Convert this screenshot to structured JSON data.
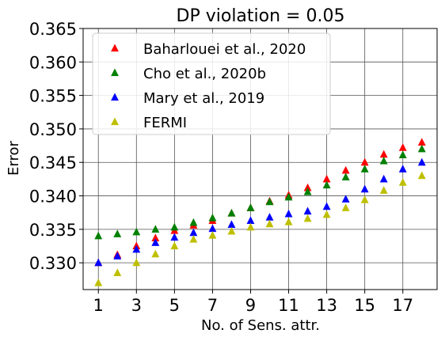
{
  "chart_data": {
    "type": "scatter",
    "title": "DP violation = 0.05",
    "xlabel": "No. of Sens. attr.",
    "ylabel": "Error",
    "xlim": [
      0.2,
      18.8
    ],
    "ylim": [
      0.326,
      0.365
    ],
    "xticks": [
      "1",
      "3",
      "5",
      "7",
      "9",
      "11",
      "13",
      "15",
      "17"
    ],
    "yticks": [
      "0.330",
      "0.335",
      "0.340",
      "0.345",
      "0.350",
      "0.355",
      "0.360",
      "0.365"
    ],
    "grid": true,
    "legend_position": "top-left",
    "marker": "triangle",
    "x": [
      1,
      2,
      3,
      4,
      5,
      6,
      7,
      8,
      9,
      10,
      11,
      12,
      13,
      14,
      15,
      16,
      17,
      18
    ],
    "series": [
      {
        "name": "Baharlouei et al., 2020",
        "color": "#ff0000",
        "values": [
          0.33,
          0.3312,
          0.3325,
          0.3337,
          0.3348,
          0.3356,
          0.3363,
          0.3374,
          0.3382,
          0.3392,
          0.3401,
          0.3412,
          0.3425,
          0.3438,
          0.345,
          0.3462,
          0.3472,
          0.348
        ]
      },
      {
        "name": "Cho et al., 2020b",
        "color": "#008000",
        "values": [
          0.334,
          0.3343,
          0.3346,
          0.335,
          0.3353,
          0.336,
          0.3367,
          0.3374,
          0.3382,
          0.3391,
          0.3398,
          0.3406,
          0.3416,
          0.3428,
          0.344,
          0.3452,
          0.3461,
          0.347
        ]
      },
      {
        "name": "Mary et al., 2019",
        "color": "#0000ff",
        "values": [
          0.33,
          0.331,
          0.332,
          0.333,
          0.3338,
          0.3345,
          0.3351,
          0.3357,
          0.3363,
          0.3368,
          0.3373,
          0.3377,
          0.3384,
          0.3395,
          0.341,
          0.3425,
          0.344,
          0.345
        ]
      },
      {
        "name": "FERMI",
        "color": "#bfbf00",
        "values": [
          0.327,
          0.3285,
          0.33,
          0.3313,
          0.3325,
          0.3335,
          0.3341,
          0.3347,
          0.3353,
          0.3358,
          0.3361,
          0.3366,
          0.3372,
          0.3382,
          0.3394,
          0.3408,
          0.342,
          0.343
        ]
      }
    ]
  }
}
